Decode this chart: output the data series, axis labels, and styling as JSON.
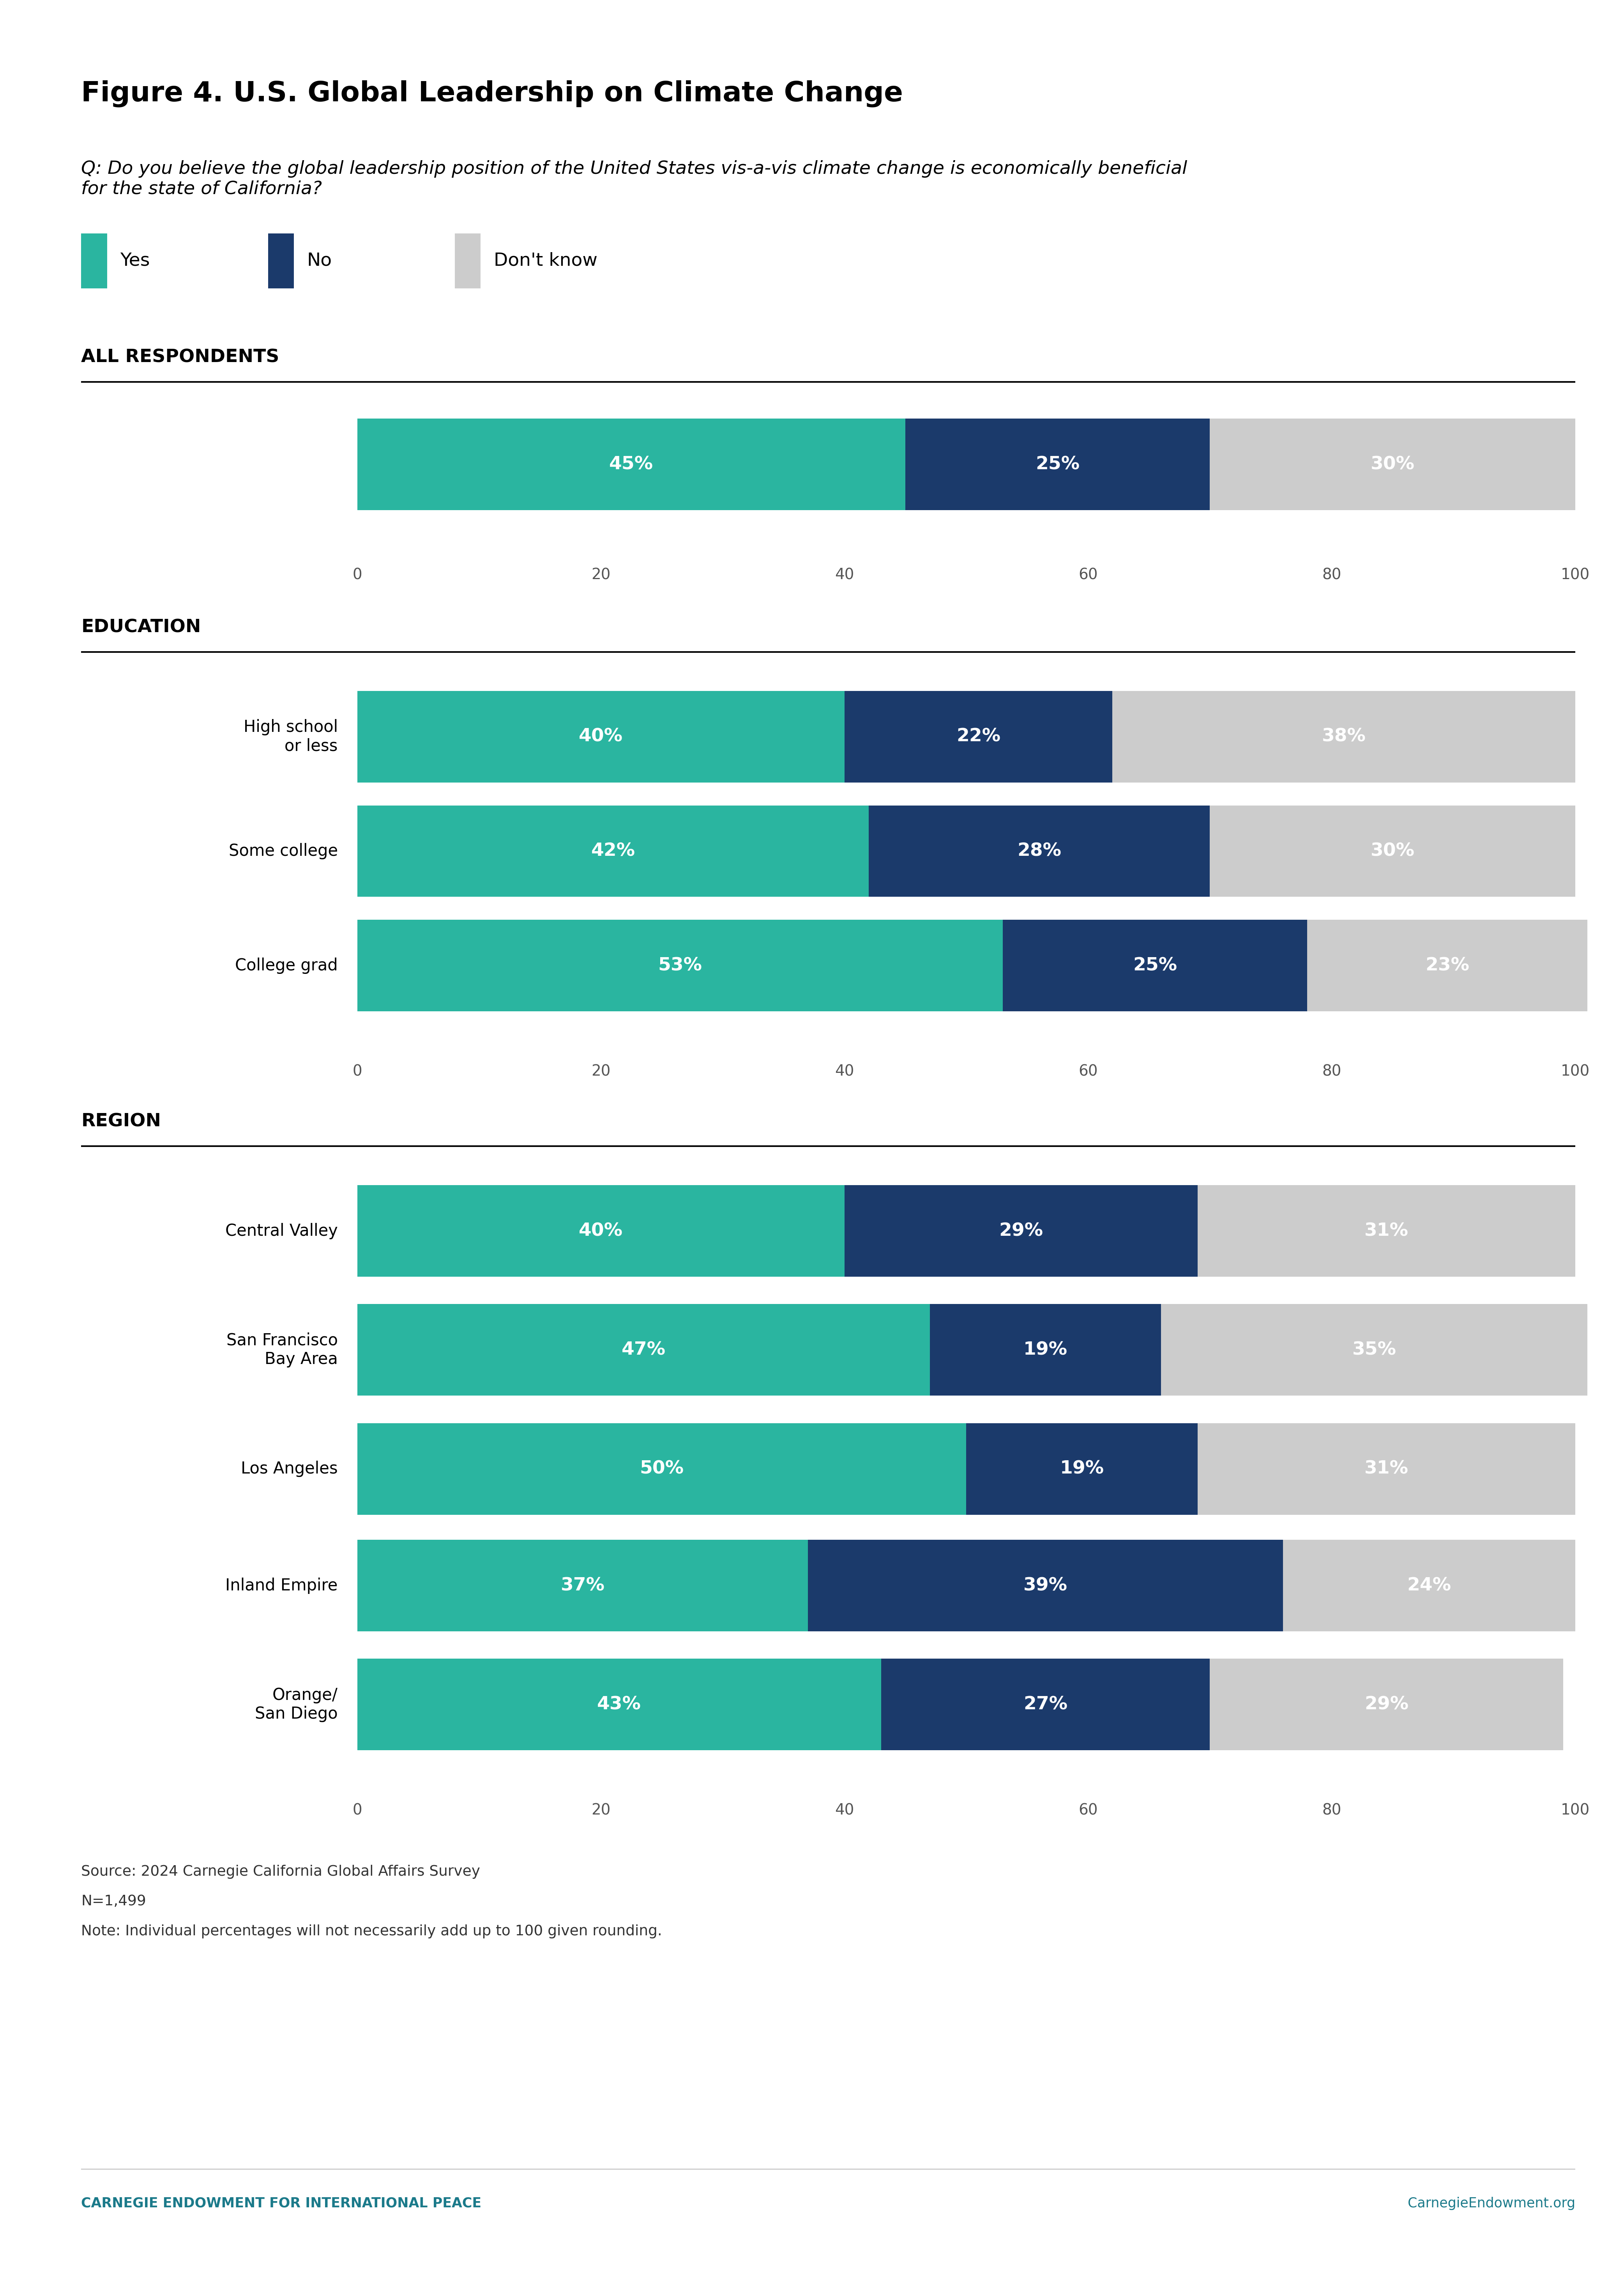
{
  "title": "Figure 4. U.S. Global Leadership on Climate Change",
  "question": "Q: Do you believe the global leadership position of the United States vis-a-vis climate change is economically beneficial\nfor the state of California?",
  "legend": [
    "Yes",
    "No",
    "Don't know"
  ],
  "colors": {
    "yes": "#2ab5a0",
    "no": "#1b3a6b",
    "dk": "#cccccc",
    "title_color": "#000000",
    "bar_text": "#ffffff",
    "footer_text": "#333333",
    "ceip_teal": "#1b7a8a",
    "ceip_web": "#1b7a8a"
  },
  "sections": [
    {
      "label": "ALL RESPONDENTS",
      "rows": [
        {
          "name": "",
          "yes": 45,
          "no": 25,
          "dk": 30
        }
      ]
    },
    {
      "label": "EDUCATION",
      "rows": [
        {
          "name": "High school\nor less",
          "yes": 40,
          "no": 22,
          "dk": 38
        },
        {
          "name": "Some college",
          "yes": 42,
          "no": 28,
          "dk": 30
        },
        {
          "name": "College grad",
          "yes": 53,
          "no": 25,
          "dk": 23
        }
      ]
    },
    {
      "label": "REGION",
      "rows": [
        {
          "name": "Central Valley",
          "yes": 40,
          "no": 29,
          "dk": 31
        },
        {
          "name": "San Francisco\nBay Area",
          "yes": 47,
          "no": 19,
          "dk": 35
        },
        {
          "name": "Los Angeles",
          "yes": 50,
          "no": 19,
          "dk": 31
        },
        {
          "name": "Inland Empire",
          "yes": 37,
          "no": 39,
          "dk": 24
        },
        {
          "name": "Orange/\nSan Diego",
          "yes": 43,
          "no": 27,
          "dk": 29
        }
      ]
    }
  ],
  "source_lines": [
    "Source: 2024 Carnegie California Global Affairs Survey",
    "N=1,499",
    "Note: Individual percentages will not necessarily add up to 100 given rounding."
  ],
  "footer_left": "CARNEGIE ENDOWMENT FOR INTERNATIONAL PEACE",
  "footer_right": "CarnegieEndowment.org"
}
